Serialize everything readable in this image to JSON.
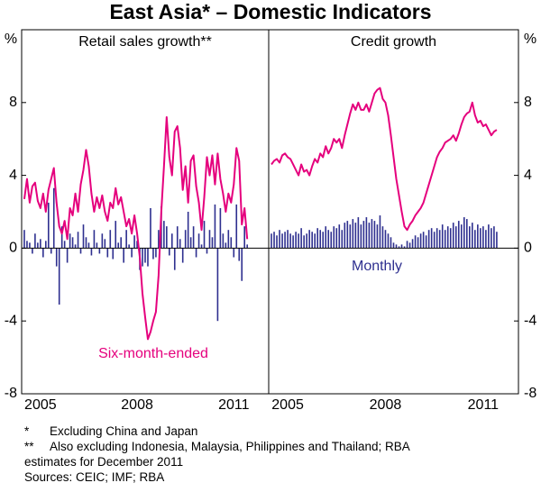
{
  "title": "East Asia* – Domestic Indicators",
  "y_unit": "%",
  "notes": [
    {
      "marker": "*",
      "lines": [
        "Excluding China and Japan"
      ]
    },
    {
      "marker": "**",
      "lines": [
        "Also excluding Indonesia, Malaysia, Philippines and Thailand; RBA",
        "estimates for December 2011"
      ]
    }
  ],
  "sources": "Sources: CEIC; IMF; RBA",
  "chart_data": [
    {
      "type": "combo",
      "title": "Retail sales growth**",
      "categories": [
        null,
        null,
        null,
        null,
        null,
        null,
        "2005",
        null,
        null,
        null,
        null,
        null,
        null,
        null,
        null,
        null,
        null,
        null,
        null,
        null,
        null,
        null,
        null,
        null,
        null,
        null,
        null,
        null,
        null,
        null,
        null,
        null,
        null,
        null,
        null,
        null,
        null,
        null,
        null,
        null,
        null,
        null,
        "2008",
        null,
        null,
        null,
        null,
        null,
        null,
        null,
        null,
        null,
        null,
        null,
        null,
        null,
        null,
        null,
        null,
        null,
        null,
        null,
        null,
        null,
        null,
        null,
        null,
        null,
        null,
        null,
        null,
        null,
        null,
        null,
        null,
        null,
        null,
        null,
        "2011",
        null,
        null,
        null,
        null,
        null
      ],
      "ylim": [
        -8,
        12
      ],
      "yticks": [
        -8,
        -4,
        0,
        4,
        8
      ],
      "series": [
        {
          "kind": "bar",
          "color": "#2e2f8f",
          "values": [
            1.0,
            0.4,
            0.3,
            -0.3,
            0.8,
            0.3,
            0.5,
            -0.5,
            0.4,
            2.5,
            -0.3,
            3.3,
            -1.0,
            -3.1,
            1.2,
            0.4,
            -0.8,
            0.8,
            0.6,
            0.2,
            0.9,
            -0.3,
            1.3,
            0.6,
            0.3,
            -0.4,
            1.0,
            0.3,
            -0.3,
            0.8,
            0.5,
            -0.5,
            1.0,
            -0.6,
            1.5,
            0.3,
            0.6,
            -0.8,
            1.0,
            0.2,
            -0.5,
            0.7,
            0.4,
            -1.2,
            -1.0,
            -0.8,
            -1.0,
            2.2,
            -0.6,
            -0.5,
            1.0,
            2.3,
            1.5,
            1.2,
            -0.4,
            0.8,
            -1.2,
            1.2,
            0.5,
            -0.8,
            1.0,
            2.0,
            0.6,
            1.2,
            -0.5,
            0.8,
            0.2,
            1.5,
            -0.3,
            1.0,
            0.6,
            2.4,
            -4.0,
            2.2,
            0.8,
            0.3,
            1.0,
            0.6,
            -0.5,
            2.4,
            -0.7,
            -1.8,
            1.2,
            0.2
          ]
        },
        {
          "kind": "line",
          "name": "Six-month-ended",
          "color": "#e5007d",
          "values": [
            2.7,
            3.8,
            2.5,
            3.4,
            3.6,
            2.6,
            2.2,
            3.0,
            2.0,
            3.2,
            3.8,
            4.4,
            2.5,
            1.2,
            0.8,
            1.5,
            0.5,
            2.2,
            1.8,
            3.0,
            2.0,
            3.5,
            4.3,
            5.4,
            4.5,
            3.0,
            2.0,
            2.8,
            2.2,
            2.9,
            2.0,
            1.5,
            2.5,
            2.2,
            3.3,
            2.4,
            2.8,
            2.0,
            1.2,
            1.6,
            0.8,
            1.8,
            0.8,
            -0.5,
            -2.5,
            -3.8,
            -5.0,
            -4.6,
            -4.0,
            -3.5,
            -1.5,
            2.0,
            4.5,
            7.2,
            5.0,
            4.0,
            6.4,
            6.7,
            5.5,
            3.2,
            4.5,
            2.5,
            4.8,
            5.1,
            3.4,
            2.5,
            1.0,
            2.8,
            5.0,
            4.0,
            5.1,
            3.5,
            5.2,
            3.8,
            3.0,
            2.0,
            3.0,
            2.5,
            3.5,
            5.5,
            4.8,
            1.3,
            2.2,
            0.5
          ]
        }
      ]
    },
    {
      "type": "combo",
      "title": "Credit growth",
      "categories": [
        null,
        null,
        null,
        null,
        null,
        null,
        "2005",
        null,
        null,
        null,
        null,
        null,
        null,
        null,
        null,
        null,
        null,
        null,
        null,
        null,
        null,
        null,
        null,
        null,
        null,
        null,
        null,
        null,
        null,
        null,
        null,
        null,
        null,
        null,
        null,
        null,
        null,
        null,
        null,
        null,
        null,
        null,
        "2008",
        null,
        null,
        null,
        null,
        null,
        null,
        null,
        null,
        null,
        null,
        null,
        null,
        null,
        null,
        null,
        null,
        null,
        null,
        null,
        null,
        null,
        null,
        null,
        null,
        null,
        null,
        null,
        null,
        null,
        null,
        null,
        null,
        null,
        null,
        null,
        "2011",
        null,
        null,
        null,
        null,
        null
      ],
      "ylim": [
        -8,
        12
      ],
      "yticks": [
        -8,
        -4,
        0,
        4,
        8
      ],
      "series": [
        {
          "kind": "bar",
          "name": "Monthly",
          "color": "#2e2f8f",
          "values": [
            0.8,
            0.9,
            0.7,
            1.0,
            0.8,
            0.9,
            1.0,
            0.8,
            0.7,
            0.9,
            0.8,
            1.1,
            0.7,
            0.8,
            1.0,
            0.9,
            0.8,
            1.1,
            1.0,
            0.9,
            1.2,
            1.0,
            0.9,
            1.2,
            1.1,
            1.3,
            1.0,
            1.4,
            1.5,
            1.3,
            1.6,
            1.4,
            1.7,
            1.3,
            1.5,
            1.7,
            1.4,
            1.6,
            1.5,
            1.3,
            1.8,
            1.2,
            1.0,
            0.8,
            0.6,
            0.3,
            0.2,
            0.1,
            0.2,
            0.1,
            0.4,
            0.3,
            0.5,
            0.7,
            0.6,
            0.8,
            0.9,
            0.7,
            1.0,
            1.1,
            0.9,
            1.1,
            1.0,
            1.3,
            1.0,
            1.2,
            1.1,
            1.4,
            1.2,
            1.5,
            1.3,
            1.7,
            1.6,
            1.2,
            1.4,
            1.0,
            1.3,
            1.1,
            1.2,
            1.0,
            1.3,
            1.1,
            1.2,
            0.9
          ]
        },
        {
          "kind": "line",
          "color": "#e5007d",
          "values": [
            4.6,
            4.8,
            4.9,
            4.7,
            5.1,
            5.2,
            5.0,
            4.9,
            4.6,
            4.3,
            4.0,
            4.6,
            4.2,
            4.3,
            4.0,
            4.5,
            4.9,
            4.7,
            5.2,
            5.0,
            5.6,
            5.2,
            5.5,
            6.0,
            5.8,
            6.0,
            5.5,
            6.2,
            6.8,
            7.4,
            7.9,
            7.6,
            8.0,
            7.6,
            7.6,
            7.9,
            7.5,
            8.0,
            8.5,
            8.7,
            8.8,
            8.2,
            8.0,
            7.3,
            6.2,
            5.0,
            3.8,
            2.9,
            2.0,
            1.2,
            1.0,
            1.3,
            1.5,
            1.8,
            2.0,
            2.2,
            2.5,
            3.0,
            3.5,
            4.0,
            4.5,
            5.0,
            5.3,
            5.5,
            5.8,
            5.9,
            6.0,
            6.2,
            5.9,
            6.3,
            6.8,
            7.2,
            7.4,
            7.5,
            8.0,
            7.3,
            6.9,
            7.0,
            6.7,
            6.8,
            6.5,
            6.2,
            6.4,
            6.5
          ]
        }
      ]
    }
  ]
}
